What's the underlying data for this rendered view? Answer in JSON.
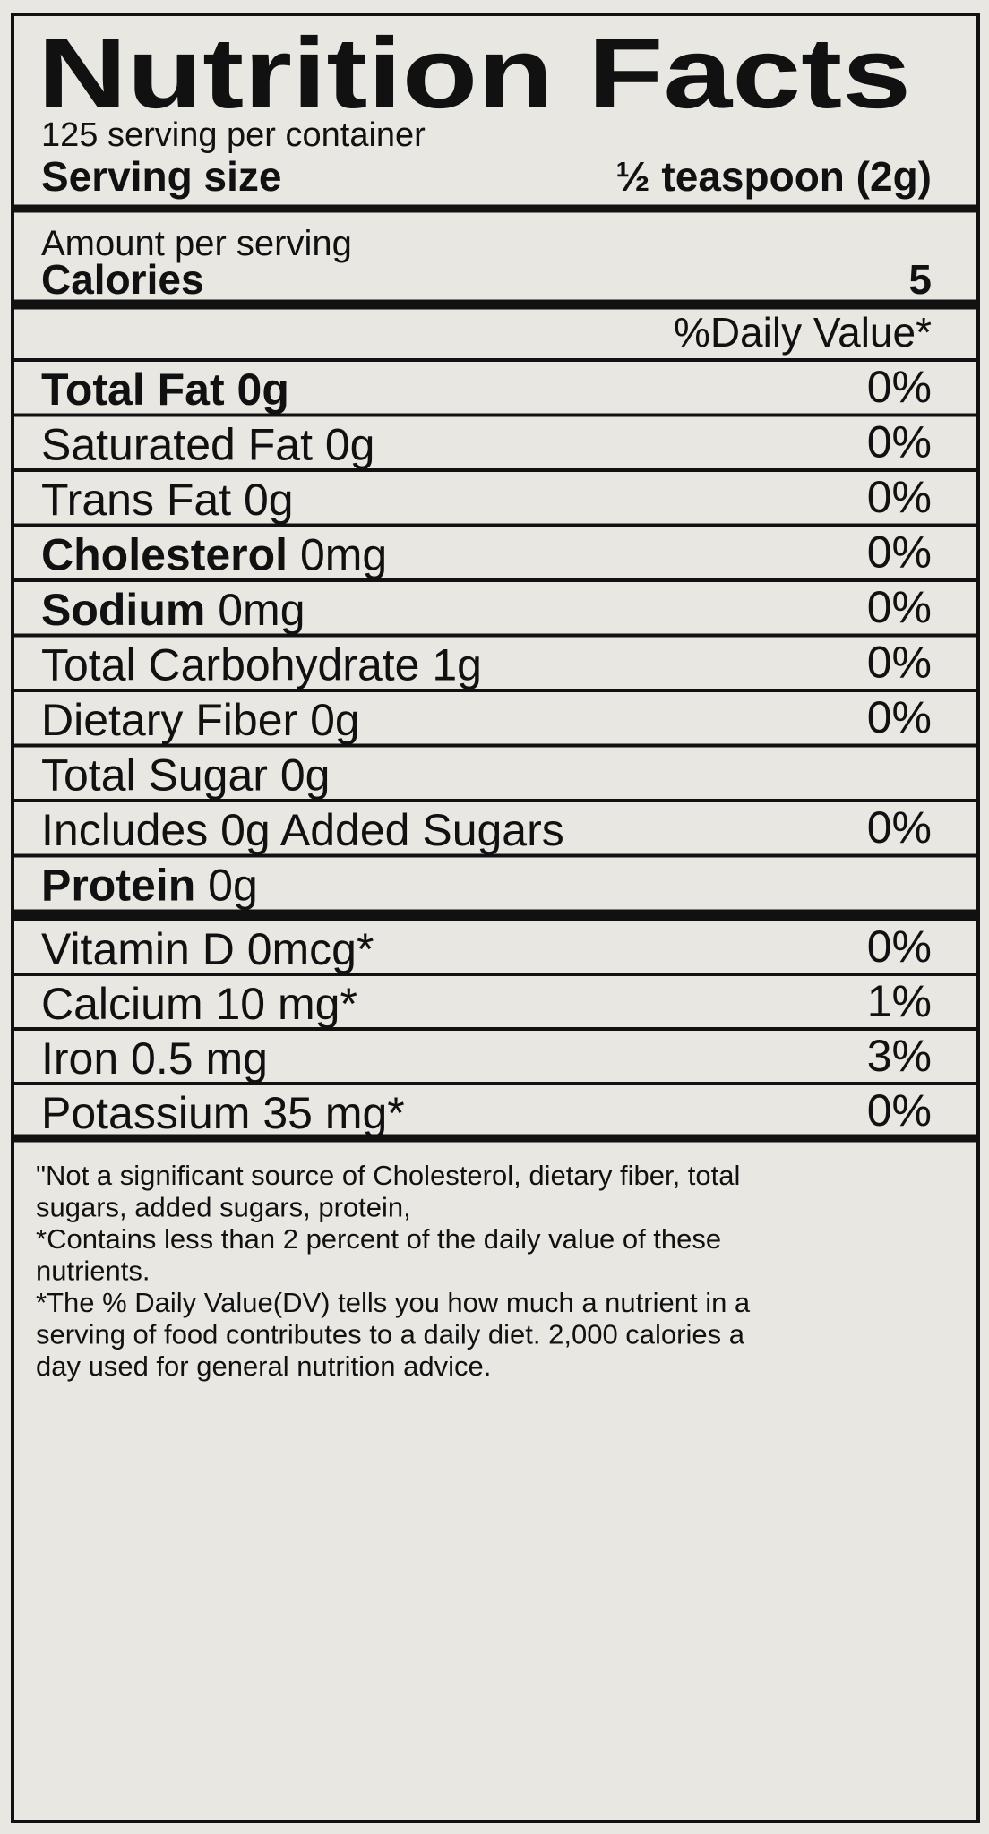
{
  "title": "Nutrition Facts",
  "servings": "125 serving per container",
  "serving_size": {
    "label": "Serving size",
    "value": "½ teaspoon (2g)"
  },
  "amount_per_serving": "Amount per serving",
  "calories": {
    "label": "Calories",
    "value": "5"
  },
  "daily_value_header": "%Daily Value*",
  "nutrients": [
    {
      "bold": "Total Fat 0g",
      "dv": "0%"
    },
    {
      "text": "Saturated Fat 0g",
      "dv": "0%"
    },
    {
      "text": "Trans Fat 0g",
      "dv": "0%"
    },
    {
      "bold": "Cholesterol",
      "text": "0mg",
      "dv": "0%"
    },
    {
      "bold": "Sodium",
      "text": "0mg",
      "dv": "0%"
    },
    {
      "text": "Total Carbohydrate 1g",
      "dv": "0%"
    },
    {
      "text": "Dietary Fiber 0g",
      "dv": "0%"
    },
    {
      "text": "Total Sugar 0g"
    },
    {
      "text": "Includes 0g Added Sugars",
      "dv": "0%"
    },
    {
      "bold": "Protein",
      "text": "0g"
    }
  ],
  "vitamins": [
    {
      "text": "Vitamin D 0mcg*",
      "dv": "0%"
    },
    {
      "text": "Calcium 10 mg*",
      "dv": "1%"
    },
    {
      "text": "Iron 0.5 mg",
      "dv": "3%"
    },
    {
      "text": "Potassium 35 mg*",
      "dv": "0%"
    }
  ],
  "footnotes": [
    "\"Not a significant source of Cholesterol, dietary fiber, total",
    "sugars, added sugars, protein,",
    "*Contains less than 2 percent of the daily value of these",
    "nutrients.",
    "*The % Daily Value(DV) tells you how much a nutrient in a",
    "serving of food contributes to a daily diet. 2,000 calories a",
    "day used for general nutrition advice."
  ]
}
